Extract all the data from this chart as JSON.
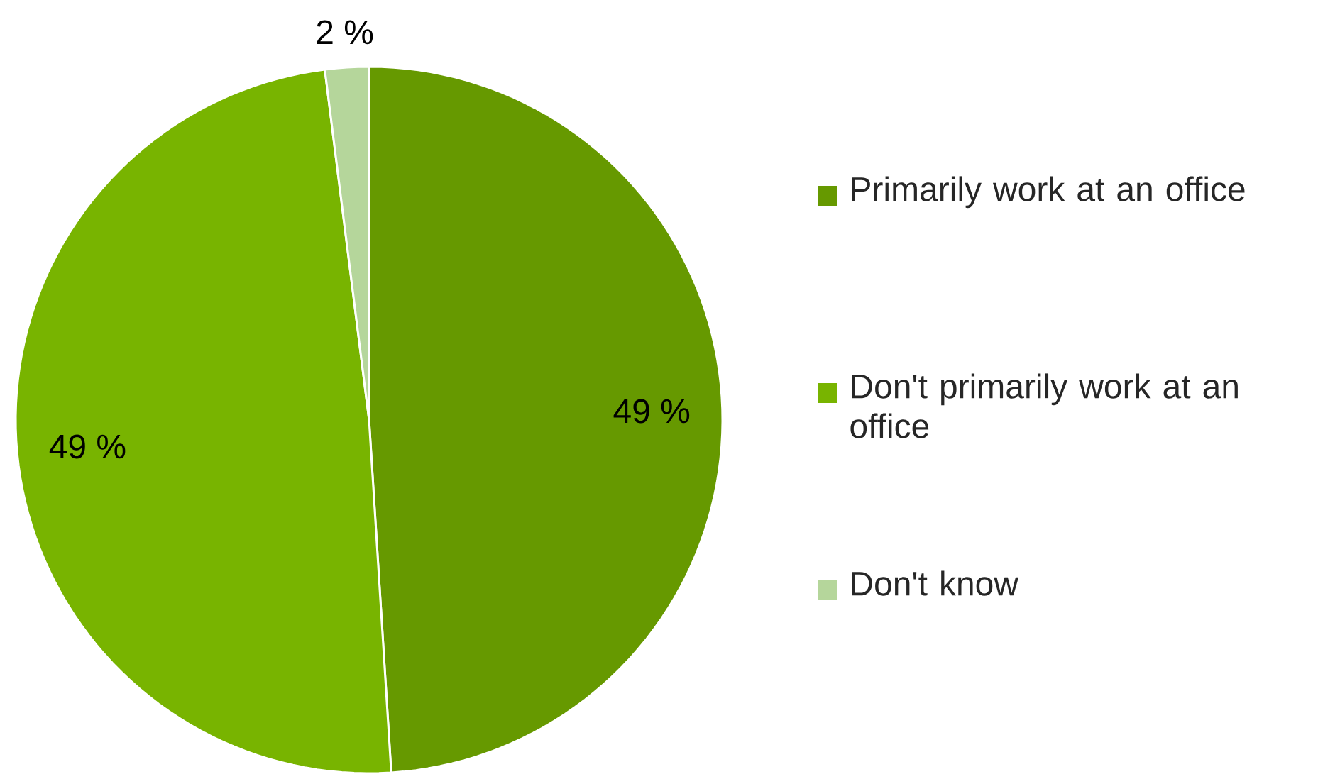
{
  "chart_data": {
    "type": "pie",
    "categories": [
      "Primarily work at an office",
      "Don't primarily work at an office",
      "Don't know"
    ],
    "values": [
      49,
      49,
      2
    ],
    "colors": [
      "#669900",
      "#78b400",
      "#b5d69b"
    ],
    "value_labels": [
      "49 %",
      "49 %",
      "2 %"
    ],
    "legend": "right"
  }
}
